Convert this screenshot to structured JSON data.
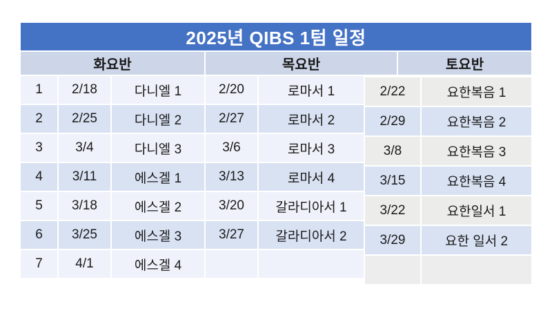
{
  "slide": {
    "title": "2025년 QIBS 1텀 일정"
  },
  "table": {
    "section_headers": [
      "화요반",
      "목요반",
      "토요반"
    ],
    "rows": [
      {
        "num": "1",
        "tue_date": "2/18",
        "tue_topic": "다니엘 1",
        "thu_date": "2/20",
        "thu_topic": "로마서 1"
      },
      {
        "num": "2",
        "tue_date": "2/25",
        "tue_topic": "다니엘 2",
        "thu_date": "2/27",
        "thu_topic": "로마서 2"
      },
      {
        "num": "3",
        "tue_date": "3/4",
        "tue_topic": "다니엘 3",
        "thu_date": "3/6",
        "thu_topic": "로마서 3"
      },
      {
        "num": "4",
        "tue_date": "3/11",
        "tue_topic": "에스겔 1",
        "thu_date": "3/13",
        "thu_topic": "로마서 4"
      },
      {
        "num": "5",
        "tue_date": "3/18",
        "tue_topic": "에스겔 2",
        "thu_date": "3/20",
        "thu_topic": "갈라디아서 1"
      },
      {
        "num": "6",
        "tue_date": "3/25",
        "tue_topic": "에스겔 3",
        "thu_date": "3/27",
        "thu_topic": "갈라디아서 2"
      },
      {
        "num": "7",
        "tue_date": "4/1",
        "tue_topic": "에스겔 4",
        "thu_date": "",
        "thu_topic": ""
      }
    ],
    "saturday_rows": [
      {
        "date": "2/22",
        "topic": "요한복음 1"
      },
      {
        "date": "2/29",
        "topic": "요한복음 2"
      },
      {
        "date": "3/8",
        "topic": "요한복음 3"
      },
      {
        "date": "3/15",
        "topic": "요한복음 4"
      },
      {
        "date": "3/22",
        "topic": "요한일서 1"
      },
      {
        "date": "3/29",
        "topic": "요한 일서 2"
      }
    ]
  },
  "colors": {
    "title_bar": "#4472C4",
    "title_text": "#FFFFFF",
    "header_bg": "#CDD6E8",
    "band_blue": "#D9E2F3",
    "band_light": "#EFF2FA",
    "saturday_band_light": "#ECEDEB",
    "empty_cell": "#EDEDED",
    "text": "#191919",
    "page_bg": "#FFFFFF"
  }
}
